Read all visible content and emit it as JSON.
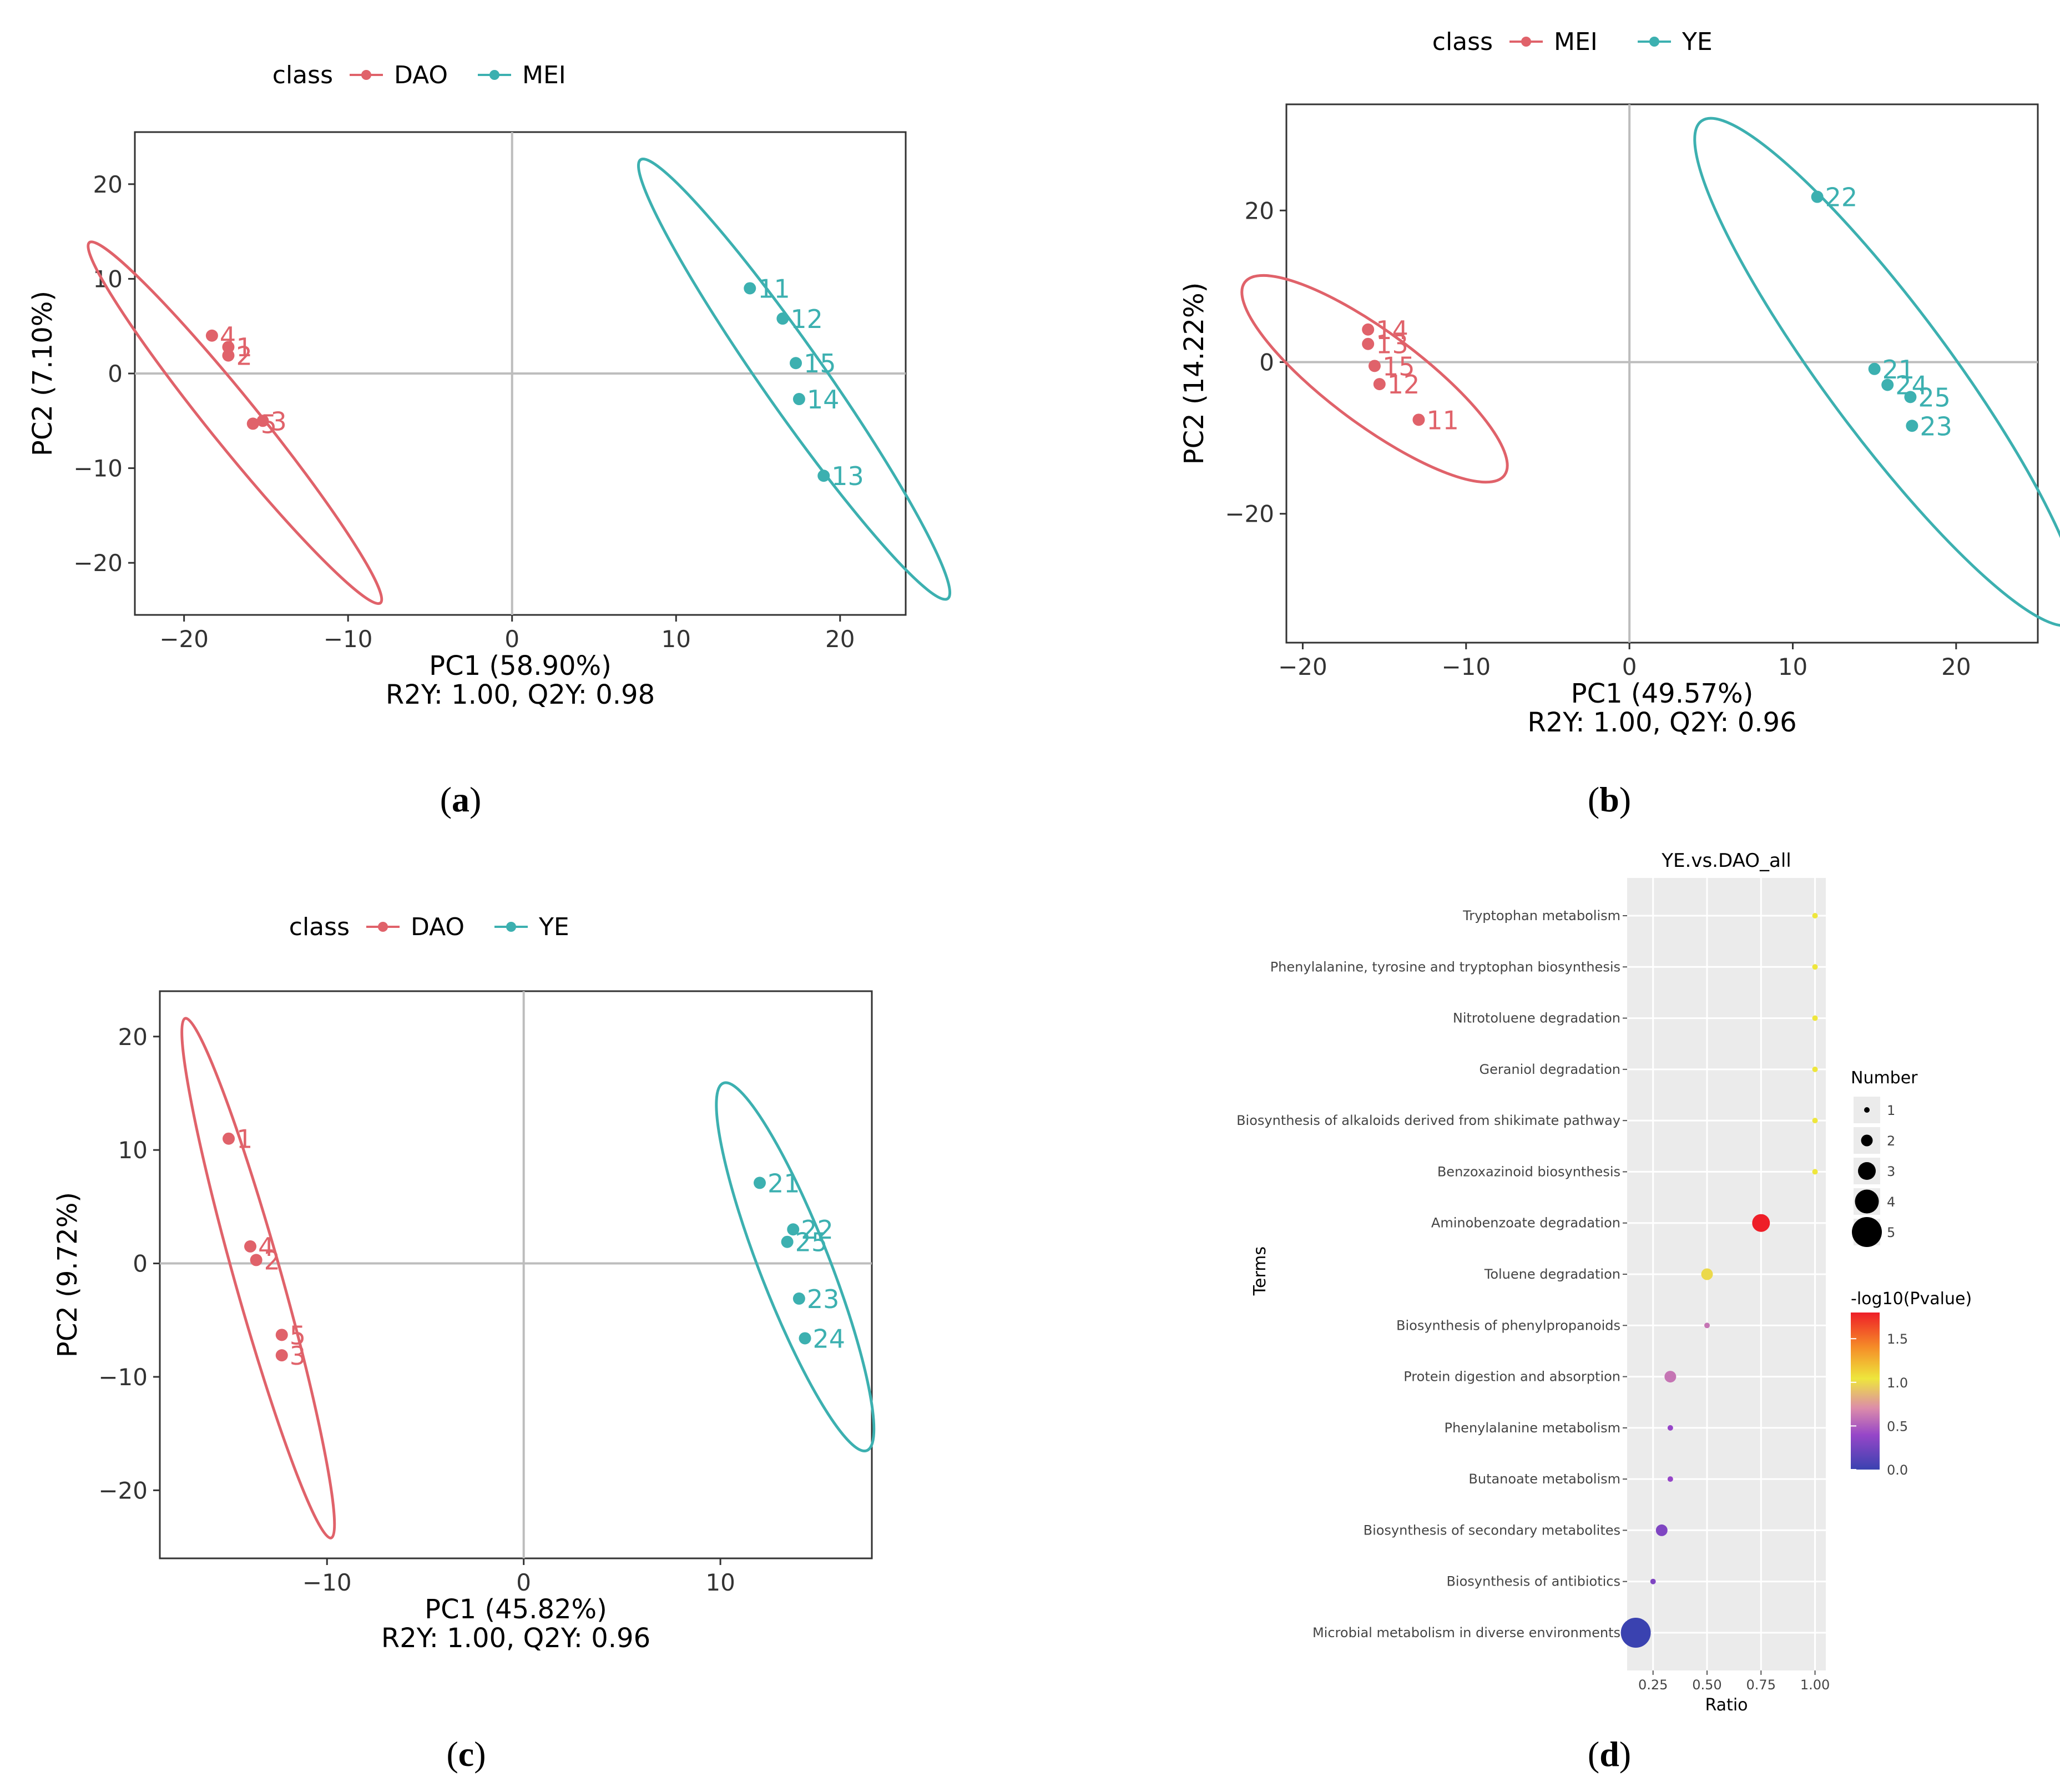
{
  "colors": {
    "red": "#e0626a",
    "teal": "#3cb0b0",
    "grid": "#bdbdbd",
    "panel_bg": "#ebebeb"
  },
  "captions": {
    "a": "a",
    "b": "b",
    "c": "c",
    "d": "d"
  },
  "chart_data": [
    {
      "id": "a",
      "type": "scatter",
      "legend_title": "class",
      "legend_position": "top",
      "xlabel": "PC1 (58.90%)",
      "subtitle": "R2Y: 1.00, Q2Y: 0.98",
      "ylabel": "PC2 (7.10%)",
      "xlim": [
        -23,
        24
      ],
      "ylim": [
        -25.5,
        25.5
      ],
      "xticks": [
        -20,
        -10,
        0,
        10,
        20
      ],
      "yticks": [
        -20,
        -10,
        0,
        10,
        20
      ],
      "xtick_labels": [
        "−20",
        "−10",
        "0",
        "10",
        "20"
      ],
      "ytick_labels": [
        "−20",
        "−10",
        "0",
        "10",
        "20"
      ],
      "grid": false,
      "series": [
        {
          "name": "DAO",
          "color": "#e0626a",
          "points": [
            {
              "label": "4",
              "x": -18.3,
              "y": 4.0
            },
            {
              "label": "1",
              "x": -17.3,
              "y": 2.8
            },
            {
              "label": "2",
              "x": -17.3,
              "y": 1.9
            },
            {
              "label": "5",
              "x": -15.8,
              "y": -5.3
            },
            {
              "label": "3",
              "x": -15.2,
              "y": -5.0
            }
          ],
          "ellipse": {
            "cx": -16.9,
            "cy": -5.2,
            "rx": 21.0,
            "ry": 1.6,
            "angle": -65.0
          }
        },
        {
          "name": "MEI",
          "color": "#3cb0b0",
          "points": [
            {
              "label": "11",
              "x": 14.5,
              "y": 9.0
            },
            {
              "label": "12",
              "x": 16.5,
              "y": 5.8
            },
            {
              "label": "15",
              "x": 17.3,
              "y": 1.1
            },
            {
              "label": "14",
              "x": 17.5,
              "y": -2.7
            },
            {
              "label": "13",
              "x": 19.0,
              "y": -10.8
            }
          ],
          "ellipse": {
            "cx": 17.2,
            "cy": -0.6,
            "rx": 25.0,
            "ry": 2.0,
            "angle": -68.0
          }
        }
      ]
    },
    {
      "id": "b",
      "type": "scatter",
      "legend_title": "class",
      "legend_position": "top",
      "xlabel": "PC1 (49.57%)",
      "subtitle": "R2Y: 1.00, Q2Y: 0.96",
      "ylabel": "PC2 (14.22%)",
      "xlim": [
        -21,
        25
      ],
      "ylim": [
        -37,
        34
      ],
      "xticks": [
        -20,
        -10,
        0,
        10,
        20
      ],
      "yticks": [
        -20,
        0,
        20
      ],
      "xtick_labels": [
        "−20",
        "−10",
        "0",
        "10",
        "20"
      ],
      "ytick_labels": [
        "−20",
        "0",
        "20"
      ],
      "grid": false,
      "series": [
        {
          "name": "MEI",
          "color": "#e0626a",
          "points": [
            {
              "label": "14",
              "x": -16.0,
              "y": 4.3
            },
            {
              "label": "13",
              "x": -16.0,
              "y": 2.4
            },
            {
              "label": "15",
              "x": -15.6,
              "y": -0.5
            },
            {
              "label": "12",
              "x": -15.3,
              "y": -2.9
            },
            {
              "label": "11",
              "x": -12.9,
              "y": -7.6
            }
          ],
          "ellipse": {
            "cx": -15.6,
            "cy": -2.2,
            "rx": 15.0,
            "ry": 3.2,
            "angle": -58.0
          }
        },
        {
          "name": "YE",
          "color": "#3cb0b0",
          "points": [
            {
              "label": "22",
              "x": 11.5,
              "y": 21.8
            },
            {
              "label": "21",
              "x": 15.0,
              "y": -0.9
            },
            {
              "label": "24",
              "x": 15.8,
              "y": -3.0
            },
            {
              "label": "25",
              "x": 17.2,
              "y": -4.6
            },
            {
              "label": "23",
              "x": 17.3,
              "y": -8.4
            }
          ],
          "ellipse": {
            "cx": 15.8,
            "cy": -1.3,
            "rx": 35.0,
            "ry": 4.0,
            "angle": -71.0
          }
        }
      ]
    },
    {
      "id": "c",
      "type": "scatter",
      "legend_title": "class",
      "legend_position": "top",
      "xlabel": "PC1 (45.82%)",
      "subtitle": "R2Y: 1.00, Q2Y: 0.96",
      "ylabel": "PC2 (9.72%)",
      "xlim": [
        -18.5,
        17.7
      ],
      "ylim": [
        -26,
        24
      ],
      "xticks": [
        -10,
        0,
        10
      ],
      "yticks": [
        -20,
        -10,
        0,
        10,
        20
      ],
      "xtick_labels": [
        "−10",
        "0",
        "10"
      ],
      "ytick_labels": [
        "−20",
        "−10",
        "0",
        "10",
        "20"
      ],
      "grid": false,
      "series": [
        {
          "name": "DAO",
          "color": "#e0626a",
          "points": [
            {
              "label": "1",
              "x": -15.0,
              "y": 11.0
            },
            {
              "label": "4",
              "x": -13.9,
              "y": 1.5
            },
            {
              "label": "2",
              "x": -13.6,
              "y": 0.3
            },
            {
              "label": "5",
              "x": -12.3,
              "y": -6.3
            },
            {
              "label": "3",
              "x": -12.3,
              "y": -8.1
            }
          ],
          "ellipse": {
            "cx": -13.5,
            "cy": -1.3,
            "rx": 23.2,
            "ry": 1.2,
            "angle": -80.8
          }
        },
        {
          "name": "YE",
          "color": "#3cb0b0",
          "points": [
            {
              "label": "21",
              "x": 12.0,
              "y": 7.1
            },
            {
              "label": "22",
              "x": 13.7,
              "y": 3.0
            },
            {
              "label": "25",
              "x": 13.4,
              "y": 1.9
            },
            {
              "label": "23",
              "x": 14.0,
              "y": -3.1
            },
            {
              "label": "24",
              "x": 14.3,
              "y": -6.6
            }
          ],
          "ellipse": {
            "cx": 13.8,
            "cy": -0.3,
            "rx": 16.6,
            "ry": 1.8,
            "angle": -77.3
          }
        }
      ]
    },
    {
      "id": "d",
      "type": "scatter",
      "title": "YE.vs.DAO_all",
      "xlabel": "Ratio",
      "ylabel": "Terms",
      "xlim": [
        0.13,
        1.05
      ],
      "xticks": [
        0.25,
        0.5,
        0.75,
        1.0
      ],
      "xtick_labels": [
        "0.25",
        "0.50",
        "0.75",
        "1.00"
      ],
      "grid": true,
      "size_legend": {
        "title": "Number",
        "values": [
          1,
          2,
          3,
          4,
          5
        ]
      },
      "color_legend": {
        "title": "-log10(Pvalue)",
        "ticks": [
          "1.5",
          "1.0",
          "0.5",
          "0.0"
        ],
        "min": 0.0,
        "max": 1.8
      },
      "terms": [
        {
          "label": "Tryptophan metabolism",
          "ratio": 1.0,
          "number": 1,
          "pvalue_log": 1.05
        },
        {
          "label": "Phenylalanine, tyrosine and tryptophan biosynthesis",
          "ratio": 1.0,
          "number": 1,
          "pvalue_log": 1.05
        },
        {
          "label": "Nitrotoluene degradation",
          "ratio": 1.0,
          "number": 1,
          "pvalue_log": 1.05
        },
        {
          "label": "Geraniol degradation",
          "ratio": 1.0,
          "number": 1,
          "pvalue_log": 1.05
        },
        {
          "label": "Biosynthesis of alkaloids derived from shikimate pathway",
          "ratio": 1.0,
          "number": 1,
          "pvalue_log": 1.05
        },
        {
          "label": "Benzoxazinoid biosynthesis",
          "ratio": 1.0,
          "number": 1,
          "pvalue_log": 1.05
        },
        {
          "label": "Aminobenzoate degradation",
          "ratio": 0.75,
          "number": 3,
          "pvalue_log": 1.8
        },
        {
          "label": "Toluene degradation",
          "ratio": 0.5,
          "number": 2,
          "pvalue_log": 1.0
        },
        {
          "label": "Biosynthesis of phenylpropanoids",
          "ratio": 0.5,
          "number": 1,
          "pvalue_log": 0.6
        },
        {
          "label": "Protein digestion and absorption",
          "ratio": 0.33,
          "number": 2,
          "pvalue_log": 0.6
        },
        {
          "label": "Phenylalanine metabolism",
          "ratio": 0.33,
          "number": 1,
          "pvalue_log": 0.4
        },
        {
          "label": "Butanoate metabolism",
          "ratio": 0.33,
          "number": 1,
          "pvalue_log": 0.4
        },
        {
          "label": "Biosynthesis of secondary metabolites",
          "ratio": 0.29,
          "number": 2,
          "pvalue_log": 0.3
        },
        {
          "label": "Biosynthesis of antibiotics",
          "ratio": 0.25,
          "number": 1,
          "pvalue_log": 0.3
        },
        {
          "label": "Microbial metabolism in diverse environments",
          "ratio": 0.17,
          "number": 5,
          "pvalue_log": 0.0
        }
      ]
    }
  ]
}
